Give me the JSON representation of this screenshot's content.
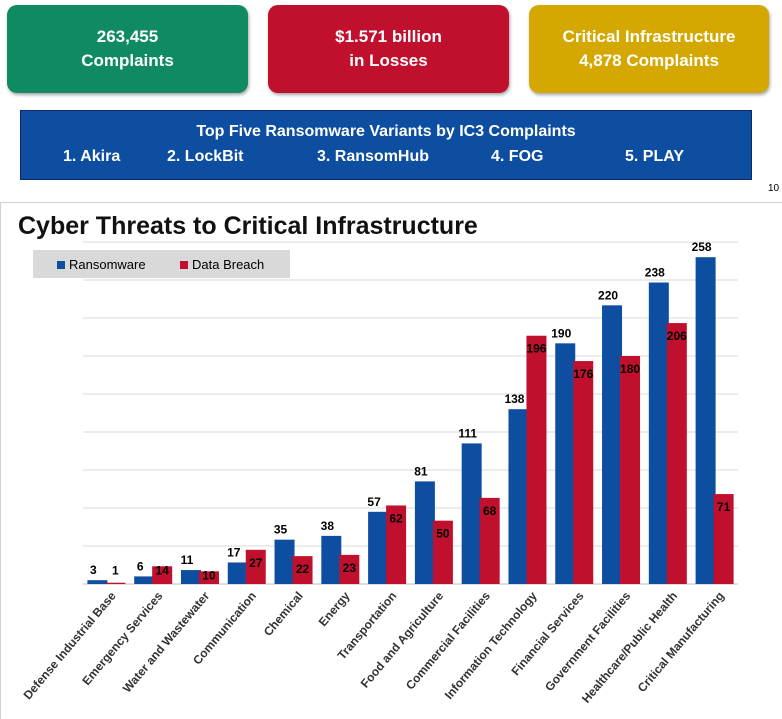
{
  "stats": [
    {
      "line1": "263,455",
      "line2": "Complaints",
      "color": "#0f8a63"
    },
    {
      "line1": "$1.571 billion",
      "line2": "in Losses",
      "color": "#c0102e"
    },
    {
      "line1": "Critical Infrastructure",
      "line2": "4,878 Complaints",
      "color": "#d4a800"
    }
  ],
  "variants": {
    "title": "Top Five Ransomware Variants by IC3 Complaints",
    "items": [
      "1. Akira",
      "2. LockBit",
      "3. RansomHub",
      "4. FOG",
      "5. PLAY"
    ],
    "color": "#0d4ea1"
  },
  "page_number": "10",
  "chart_data": {
    "type": "bar",
    "title": "Cyber Threats to Critical Infrastructure",
    "xlabel": "",
    "ylabel": "",
    "ylim": [
      0,
      270
    ],
    "grid": true,
    "legend_position": "top-left",
    "categories": [
      "Defense Industrial Base",
      "Emergency Services",
      "Water and Wastewater",
      "Communication",
      "Chemical",
      "Energy",
      "Transportation",
      "Food and Agriculture",
      "Commercial Facilities",
      "Information Technology",
      "Financial Services",
      "Government Facilities",
      "Healthcare/Public Health",
      "Critical Manufacturing"
    ],
    "series": [
      {
        "name": "Ransomware",
        "color": "#0d4ea1",
        "values": [
          3,
          6,
          11,
          17,
          35,
          38,
          57,
          81,
          111,
          138,
          190,
          220,
          238,
          258
        ]
      },
      {
        "name": "Data Breach",
        "color": "#c0102e",
        "values": [
          1,
          14,
          10,
          27,
          22,
          23,
          62,
          50,
          68,
          196,
          176,
          180,
          206,
          71
        ]
      }
    ]
  }
}
